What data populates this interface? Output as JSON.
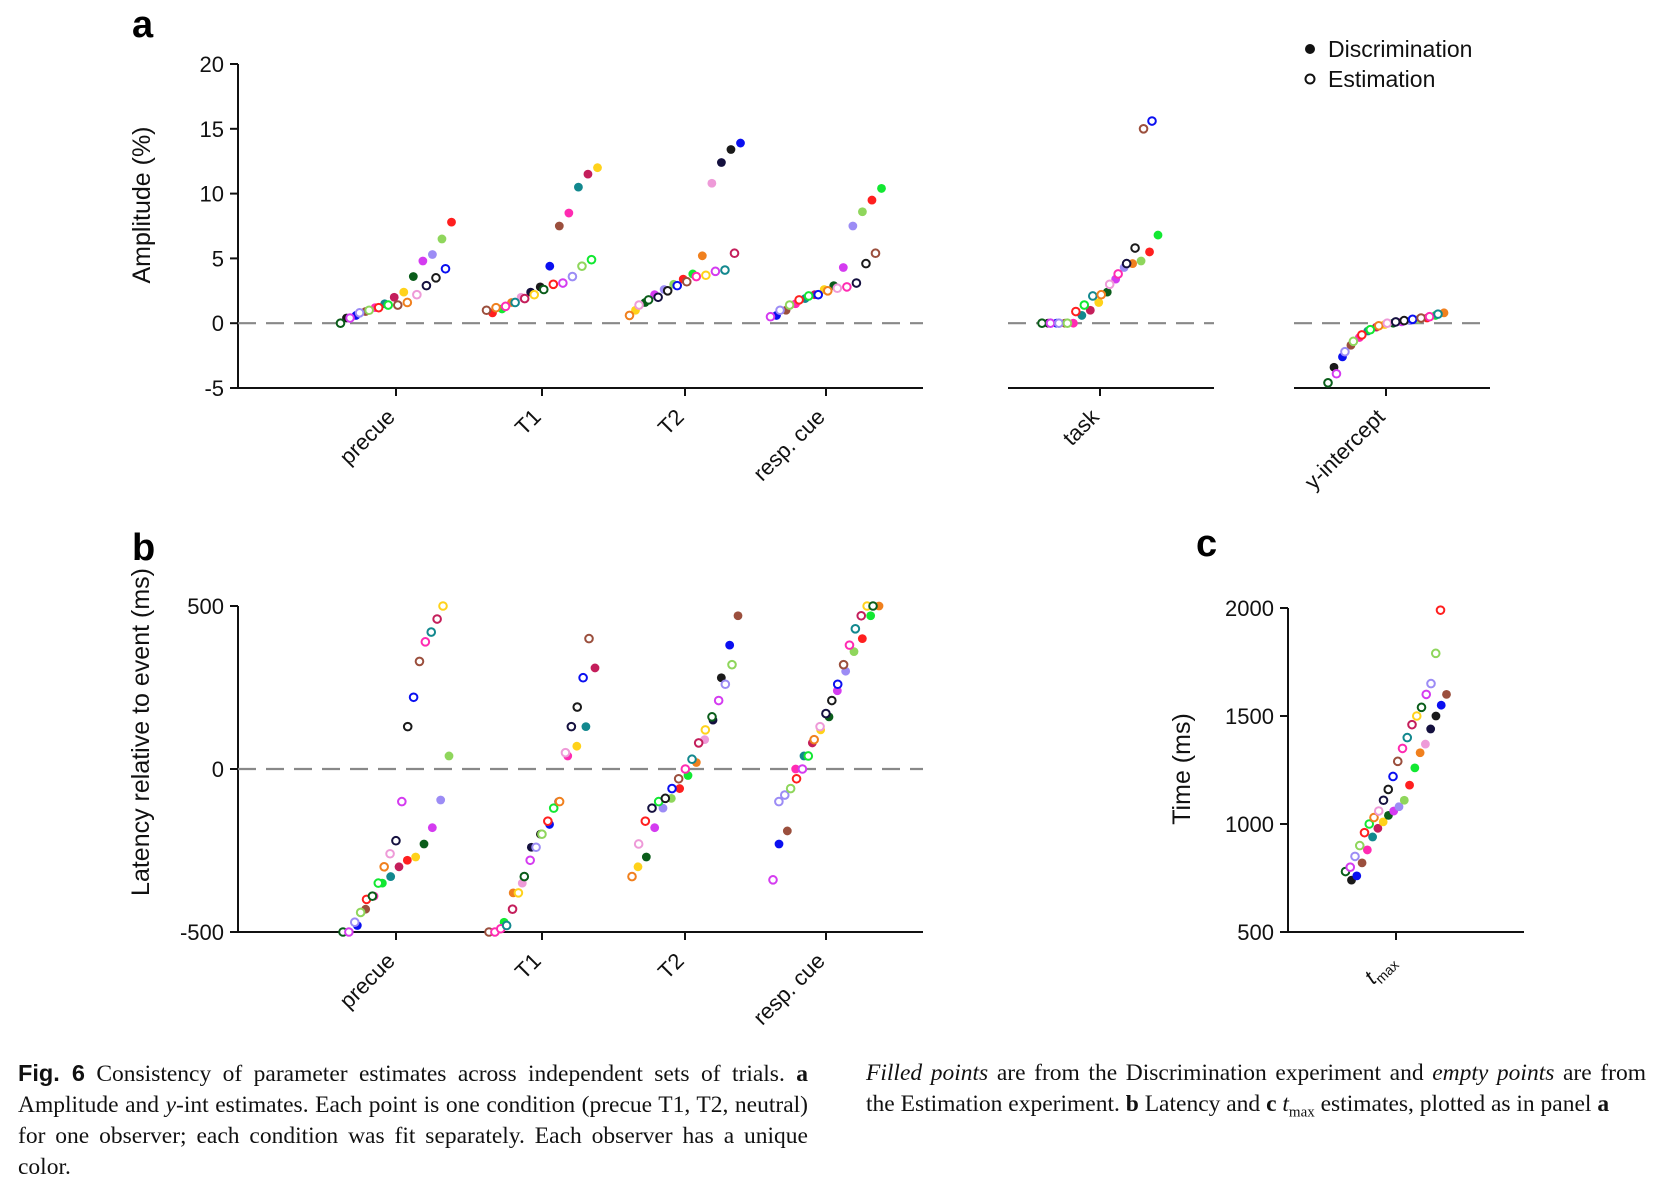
{
  "panels": {
    "a": "a",
    "b": "b",
    "c": "c"
  },
  "legend": {
    "discrimination": "Discrimination",
    "estimation": "Estimation"
  },
  "caption": {
    "fig_label": "Fig. 6",
    "p1": " Consistency of parameter estimates across independent sets of trials. ",
    "a": "a",
    "p2": " Amplitude and ",
    "y": "y",
    "p3": "-int estimates. Each point is one condition (precue T1, T2, neutral) for one observer; each condition was fit separately. Each observer has a unique color. ",
    "filled": "Filled points",
    "p4": " are from the Discrimination experiment and ",
    "empty": "empty points",
    "p5": " are from the Estimation experiment. ",
    "b": "b",
    "p6": " Latency and ",
    "c": "c",
    "t": "t",
    "max": "max",
    "p7": " estimates, plotted as in panel ",
    "a2": "a"
  },
  "colors": [
    "#1a1a1a",
    "#ff1f1f",
    "#ffd21a",
    "#0a0ff0",
    "#12e832",
    "#0a5d1a",
    "#9b4f3d",
    "#f0801e",
    "#d43bf0",
    "#ff2bb2",
    "#ee9ad8",
    "#9c8cf5",
    "#12888e",
    "#14103f",
    "#8fd65c",
    "#c41e5b"
  ],
  "chart_data": [
    {
      "id": "a-main",
      "type": "scatter",
      "panel": "a",
      "ylabel": "Amplitude (%)",
      "ylim": [
        -5,
        20
      ],
      "yticks": [
        "20",
        "15",
        "10",
        "5",
        "0",
        "-5"
      ],
      "ytick_values": [
        20,
        15,
        10,
        5,
        0,
        -5
      ],
      "reference_line": 0,
      "categories": [
        "precue",
        "T1",
        "T2",
        "resp. cue"
      ],
      "series": [
        {
          "name": "Discrimination",
          "values": [
            [
              0.4,
              0.6,
              0.9,
              1.2,
              1.5,
              2.0,
              2.4,
              3.6,
              4.8,
              5.3,
              6.5,
              7.8
            ],
            [
              0.8,
              1.1,
              1.6,
              2.0,
              2.4,
              2.8,
              4.4,
              7.5,
              8.5,
              10.5,
              11.5,
              12.0
            ],
            [
              1.0,
              1.6,
              2.2,
              2.6,
              3.0,
              3.4,
              3.8,
              5.2,
              10.8,
              12.4,
              13.4,
              13.9
            ],
            [
              0.6,
              1.0,
              1.5,
              1.9,
              2.2,
              2.6,
              2.9,
              4.3,
              7.5,
              8.6,
              9.5,
              10.4
            ]
          ]
        },
        {
          "name": "Estimation",
          "values": [
            [
              0.0,
              0.4,
              0.8,
              1.0,
              1.2,
              1.4,
              1.6,
              2.2,
              2.9,
              3.5,
              4.2,
              1.4
            ],
            [
              1.0,
              1.3,
              1.6,
              1.9,
              2.2,
              2.6,
              3.1,
              3.6,
              4.4,
              3.0,
              4.9,
              1.2
            ],
            [
              0.6,
              1.4,
              2.0,
              2.5,
              2.9,
              3.2,
              3.6,
              4.1,
              5.4,
              3.7,
              1.8,
              4.0
            ],
            [
              0.5,
              1.0,
              1.4,
              1.8,
              2.1,
              2.5,
              2.7,
              3.1,
              4.6,
              2.2,
              5.4,
              2.8
            ]
          ]
        }
      ]
    },
    {
      "id": "a-task",
      "type": "scatter",
      "panel": "a",
      "ylim": [
        -5,
        20
      ],
      "reference_line": 0,
      "categories": [
        "task"
      ],
      "series": [
        {
          "name": "Discrimination",
          "values": [
            [
              0,
              0,
              0,
              0,
              0.6,
              1.0,
              1.6,
              2.4,
              3.4,
              4.3,
              4.8,
              5.5,
              6.8,
              4.6
            ]
          ]
        },
        {
          "name": "Estimation",
          "values": [
            [
              0,
              0,
              0,
              0,
              0.9,
              1.4,
              2.2,
              3.0,
              4.6,
              5.8,
              15.6,
              15.0,
              3.8,
              2.1
            ]
          ]
        }
      ]
    },
    {
      "id": "a-yint",
      "type": "scatter",
      "panel": "a",
      "ylim": [
        -5,
        20
      ],
      "reference_line": 0,
      "categories": [
        "y-intercept"
      ],
      "series": [
        {
          "name": "Discrimination",
          "values": [
            [
              -3.4,
              -2.6,
              -1.7,
              -1.1,
              -0.6,
              -0.3,
              -0.1,
              0.0,
              0.1,
              0.2,
              0.3,
              0.4,
              0.6,
              0.8
            ]
          ]
        },
        {
          "name": "Estimation",
          "values": [
            [
              -4.6,
              -3.9,
              -2.2,
              -1.4,
              -0.9,
              -0.5,
              -0.2,
              0.0,
              0.1,
              0.2,
              0.3,
              0.4,
              0.5,
              0.7
            ]
          ]
        }
      ]
    },
    {
      "id": "b",
      "type": "scatter",
      "panel": "b",
      "ylabel": "Latency relative to event (ms)",
      "ylim": [
        -500,
        500
      ],
      "yticks": [
        "500",
        "0",
        "-500"
      ],
      "ytick_values": [
        500,
        0,
        -500
      ],
      "reference_line": 0,
      "categories": [
        "precue",
        "T1",
        "T2",
        "resp. cue"
      ],
      "series": [
        {
          "name": "Discrimination",
          "values": [
            [
              -500,
              -480,
              -430,
              -390,
              -330,
              -300,
              -270,
              -230,
              -180,
              -95,
              40,
              -280,
              -350
            ],
            [
              -500,
              -470,
              -380,
              -350,
              -240,
              -200,
              -170,
              -100,
              40,
              130,
              310,
              70
            ],
            [
              -300,
              -270,
              -180,
              -120,
              -90,
              -60,
              -20,
              20,
              90,
              150,
              280,
              380,
              470
            ],
            [
              -230,
              -190,
              0,
              40,
              80,
              120,
              160,
              240,
              300,
              360,
              400,
              470,
              500
            ]
          ]
        },
        {
          "name": "Estimation",
          "values": [
            [
              -500,
              -500,
              -470,
              -440,
              -400,
              -350,
              -300,
              -260,
              -220,
              130,
              220,
              330,
              390,
              420,
              460,
              500,
              -390,
              -100
            ],
            [
              -500,
              -490,
              -480,
              -430,
              -380,
              -330,
              -280,
              -240,
              -200,
              -160,
              -120,
              -100,
              50,
              130,
              190,
              280,
              400,
              -500
            ],
            [
              -330,
              -230,
              -120,
              -90,
              -60,
              -30,
              0,
              30,
              80,
              120,
              160,
              210,
              260,
              320,
              -160,
              -100
            ],
            [
              -340,
              -100,
              -60,
              -30,
              40,
              90,
              130,
              170,
              210,
              260,
              320,
              380,
              430,
              470,
              500,
              500,
              0,
              -80
            ]
          ]
        }
      ]
    },
    {
      "id": "c",
      "type": "scatter",
      "panel": "c",
      "ylabel": "Time (ms)",
      "ylim": [
        500,
        2000
      ],
      "yticks": [
        "2000",
        "1500",
        "1000",
        "500"
      ],
      "ytick_values": [
        2000,
        1500,
        1000,
        500
      ],
      "categories": [
        "t_max"
      ],
      "series": [
        {
          "name": "Discrimination",
          "values": [
            [
              740,
              760,
              820,
              880,
              940,
              980,
              1010,
              1040,
              1060,
              1080,
              1110,
              1180,
              1260,
              1330,
              1370,
              1440,
              1500,
              1550,
              1600
            ]
          ]
        },
        {
          "name": "Estimation",
          "values": [
            [
              780,
              800,
              850,
              900,
              960,
              1000,
              1030,
              1060,
              1110,
              1160,
              1220,
              1290,
              1350,
              1400,
              1460,
              1500,
              1540,
              1600,
              1650,
              1790,
              1990
            ]
          ]
        }
      ]
    }
  ]
}
